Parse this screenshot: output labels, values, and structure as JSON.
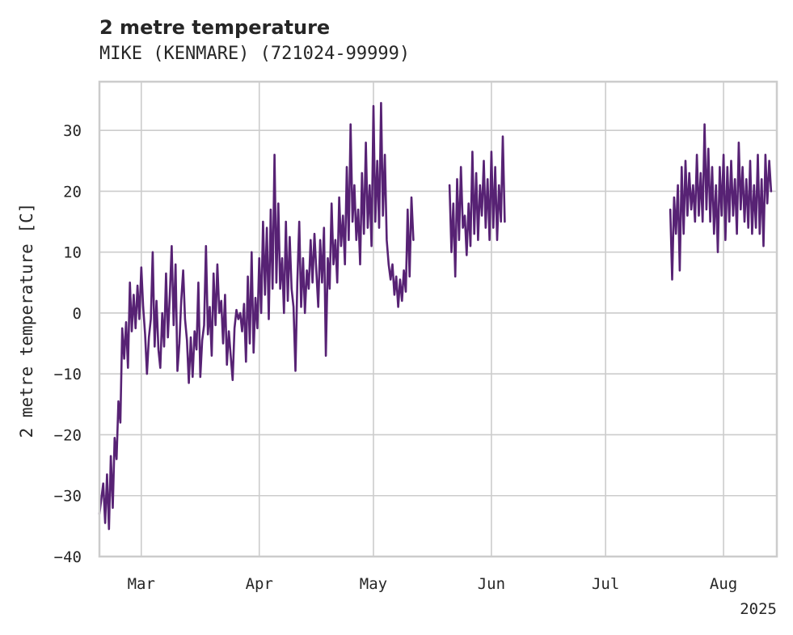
{
  "chart_data": {
    "type": "line",
    "title": "2 metre temperature",
    "subtitle": "MIKE (KENMARE) (721024-99999)",
    "xlabel": "",
    "ylabel": "2 metre temperature [C]",
    "xlim": [
      "2025-02-18",
      "2025-08-15"
    ],
    "ylim": [
      -40,
      38
    ],
    "y_ticks": [
      -40,
      -30,
      -20,
      -10,
      0,
      10,
      20,
      30
    ],
    "x_ticks": [
      {
        "date": "2025-03-01",
        "label": "Mar"
      },
      {
        "date": "2025-04-01",
        "label": "Apr"
      },
      {
        "date": "2025-05-01",
        "label": "May"
      },
      {
        "date": "2025-06-01",
        "label": "Jun"
      },
      {
        "date": "2025-07-01",
        "label": "Jul"
      },
      {
        "date": "2025-08-01",
        "label": "Aug"
      }
    ],
    "x_offset_label": "2025",
    "grid": true,
    "colors": {
      "line": "#572274",
      "grid": "#cccccc",
      "text": "#262626"
    },
    "series": [
      {
        "points": [
          [
            "2025-02-18T00:00",
            -33.0
          ],
          [
            "2025-02-18T12:00",
            -30.5
          ],
          [
            "2025-02-19T00:00",
            -28.0
          ],
          [
            "2025-02-19T12:00",
            -34.5
          ],
          [
            "2025-02-20T00:00",
            -26.5
          ],
          [
            "2025-02-20T12:00",
            -35.5
          ],
          [
            "2025-02-21T00:00",
            -23.5
          ],
          [
            "2025-02-21T12:00",
            -32.0
          ],
          [
            "2025-02-22T00:00",
            -20.5
          ],
          [
            "2025-02-22T12:00",
            -24.0
          ],
          [
            "2025-02-23T00:00",
            -14.5
          ],
          [
            "2025-02-23T12:00",
            -18.0
          ],
          [
            "2025-02-24T00:00",
            -2.5
          ],
          [
            "2025-02-24T12:00",
            -7.5
          ],
          [
            "2025-02-25T00:00",
            -1.5
          ],
          [
            "2025-02-25T12:00",
            -9.0
          ],
          [
            "2025-02-26T00:00",
            5.0
          ],
          [
            "2025-02-26T12:00",
            -3.0
          ],
          [
            "2025-02-27T00:00",
            3.0
          ],
          [
            "2025-02-27T12:00",
            -2.5
          ],
          [
            "2025-02-28T00:00",
            4.5
          ],
          [
            "2025-02-28T12:00",
            -1.0
          ],
          [
            "2025-03-01T00:00",
            7.5
          ],
          [
            "2025-03-01T12:00",
            1.0
          ],
          [
            "2025-03-02T00:00",
            -3.5
          ],
          [
            "2025-03-02T12:00",
            -10.0
          ],
          [
            "2025-03-03T00:00",
            -4.0
          ],
          [
            "2025-03-03T12:00",
            -1.0
          ],
          [
            "2025-03-04T00:00",
            10.0
          ],
          [
            "2025-03-04T12:00",
            -5.5
          ],
          [
            "2025-03-05T00:00",
            2.0
          ],
          [
            "2025-03-05T12:00",
            -6.0
          ],
          [
            "2025-03-06T00:00",
            -9.0
          ],
          [
            "2025-03-06T12:00",
            0.0
          ],
          [
            "2025-03-07T00:00",
            -5.5
          ],
          [
            "2025-03-07T12:00",
            6.5
          ],
          [
            "2025-03-08T00:00",
            -4.0
          ],
          [
            "2025-03-08T12:00",
            3.0
          ],
          [
            "2025-03-09T00:00",
            11.0
          ],
          [
            "2025-03-09T12:00",
            -2.0
          ],
          [
            "2025-03-10T00:00",
            8.0
          ],
          [
            "2025-03-10T12:00",
            -9.5
          ],
          [
            "2025-03-11T00:00",
            -5.0
          ],
          [
            "2025-03-11T12:00",
            2.0
          ],
          [
            "2025-03-12T00:00",
            7.0
          ],
          [
            "2025-03-12T12:00",
            -1.0
          ],
          [
            "2025-03-13T00:00",
            -4.5
          ],
          [
            "2025-03-13T12:00",
            -11.5
          ],
          [
            "2025-03-14T00:00",
            -4.0
          ],
          [
            "2025-03-14T12:00",
            -10.5
          ],
          [
            "2025-03-15T00:00",
            -3.0
          ],
          [
            "2025-03-15T12:00",
            -6.0
          ],
          [
            "2025-03-16T00:00",
            5.0
          ],
          [
            "2025-03-16T12:00",
            -10.5
          ],
          [
            "2025-03-17T00:00",
            -4.5
          ],
          [
            "2025-03-17T12:00",
            -2.0
          ],
          [
            "2025-03-18T00:00",
            11.0
          ],
          [
            "2025-03-18T12:00",
            -3.5
          ],
          [
            "2025-03-19T00:00",
            1.0
          ],
          [
            "2025-03-19T12:00",
            -7.0
          ],
          [
            "2025-03-20T00:00",
            6.5
          ],
          [
            "2025-03-20T12:00",
            -2.0
          ],
          [
            "2025-03-21T00:00",
            8.0
          ],
          [
            "2025-03-21T12:00",
            0.0
          ],
          [
            "2025-03-22T00:00",
            2.0
          ],
          [
            "2025-03-22T12:00",
            -5.0
          ],
          [
            "2025-03-23T00:00",
            3.0
          ],
          [
            "2025-03-23T12:00",
            -8.5
          ],
          [
            "2025-03-24T00:00",
            -3.0
          ],
          [
            "2025-03-24T12:00",
            -7.0
          ],
          [
            "2025-03-25T00:00",
            -11.0
          ],
          [
            "2025-03-25T12:00",
            -2.5
          ],
          [
            "2025-03-26T00:00",
            0.5
          ],
          [
            "2025-03-26T12:00",
            -1.0
          ],
          [
            "2025-03-27T00:00",
            0.0
          ],
          [
            "2025-03-27T12:00",
            -3.0
          ],
          [
            "2025-03-28T00:00",
            1.5
          ],
          [
            "2025-03-28T12:00",
            -8.0
          ],
          [
            "2025-03-29T00:00",
            6.0
          ],
          [
            "2025-03-29T12:00",
            -5.0
          ],
          [
            "2025-03-30T00:00",
            10.0
          ],
          [
            "2025-03-30T12:00",
            -6.5
          ],
          [
            "2025-03-31T00:00",
            2.5
          ],
          [
            "2025-03-31T12:00",
            -2.5
          ],
          [
            "2025-04-01T00:00",
            9.0
          ],
          [
            "2025-04-01T12:00",
            0.0
          ],
          [
            "2025-04-02T00:00",
            15.0
          ],
          [
            "2025-04-02T12:00",
            3.0
          ],
          [
            "2025-04-03T00:00",
            14.0
          ],
          [
            "2025-04-03T12:00",
            -1.0
          ],
          [
            "2025-04-04T00:00",
            17.0
          ],
          [
            "2025-04-04T12:00",
            4.0
          ],
          [
            "2025-04-05T00:00",
            26.0
          ],
          [
            "2025-04-05T12:00",
            5.0
          ],
          [
            "2025-04-06T00:00",
            18.0
          ],
          [
            "2025-04-06T12:00",
            4.0
          ],
          [
            "2025-04-07T00:00",
            9.0
          ],
          [
            "2025-04-07T12:00",
            0.0
          ],
          [
            "2025-04-08T00:00",
            15.0
          ],
          [
            "2025-04-08T12:00",
            2.0
          ],
          [
            "2025-04-09T00:00",
            12.5
          ],
          [
            "2025-04-09T12:00",
            4.0
          ],
          [
            "2025-04-10T00:00",
            1.0
          ],
          [
            "2025-04-10T12:00",
            -9.5
          ],
          [
            "2025-04-11T00:00",
            5.0
          ],
          [
            "2025-04-11T12:00",
            15.0
          ],
          [
            "2025-04-12T00:00",
            1.0
          ],
          [
            "2025-04-12T12:00",
            9.0
          ],
          [
            "2025-04-13T00:00",
            0.0
          ],
          [
            "2025-04-13T12:00",
            7.0
          ],
          [
            "2025-04-14T00:00",
            4.0
          ],
          [
            "2025-04-14T12:00",
            12.0
          ],
          [
            "2025-04-15T00:00",
            5.0
          ],
          [
            "2025-04-15T12:00",
            13.0
          ],
          [
            "2025-04-16T00:00",
            7.0
          ],
          [
            "2025-04-16T12:00",
            1.0
          ],
          [
            "2025-04-17T00:00",
            12.0
          ],
          [
            "2025-04-17T12:00",
            5.0
          ],
          [
            "2025-04-18T00:00",
            14.0
          ],
          [
            "2025-04-18T12:00",
            -7.0
          ],
          [
            "2025-04-19T00:00",
            9.0
          ],
          [
            "2025-04-19T12:00",
            4.0
          ],
          [
            "2025-04-20T00:00",
            18.0
          ],
          [
            "2025-04-20T12:00",
            8.0
          ],
          [
            "2025-04-21T00:00",
            12.0
          ],
          [
            "2025-04-21T12:00",
            5.0
          ],
          [
            "2025-04-22T00:00",
            19.0
          ],
          [
            "2025-04-22T12:00",
            11.0
          ],
          [
            "2025-04-23T00:00",
            16.0
          ],
          [
            "2025-04-23T12:00",
            8.0
          ],
          [
            "2025-04-24T00:00",
            24.0
          ],
          [
            "2025-04-24T12:00",
            12.0
          ],
          [
            "2025-04-25T00:00",
            31.0
          ],
          [
            "2025-04-25T12:00",
            15.0
          ],
          [
            "2025-04-26T00:00",
            21.0
          ],
          [
            "2025-04-26T12:00",
            12.0
          ],
          [
            "2025-04-27T00:00",
            17.0
          ],
          [
            "2025-04-27T12:00",
            8.0
          ],
          [
            "2025-04-28T00:00",
            23.0
          ],
          [
            "2025-04-28T12:00",
            13.0
          ],
          [
            "2025-04-29T00:00",
            28.0
          ],
          [
            "2025-04-29T12:00",
            14.0
          ],
          [
            "2025-04-30T00:00",
            21.0
          ],
          [
            "2025-04-30T12:00",
            11.0
          ],
          [
            "2025-05-01T00:00",
            34.0
          ],
          [
            "2025-05-01T12:00",
            15.0
          ],
          [
            "2025-05-02T00:00",
            25.0
          ],
          [
            "2025-05-02T12:00",
            14.0
          ],
          [
            "2025-05-03T00:00",
            34.5
          ],
          [
            "2025-05-03T12:00",
            16.0
          ],
          [
            "2025-05-04T00:00",
            26.0
          ],
          [
            "2025-05-04T12:00",
            12.0
          ],
          [
            "2025-05-05T00:00",
            8.0
          ],
          [
            "2025-05-05T12:00",
            5.5
          ],
          [
            "2025-05-06T00:00",
            8.0
          ],
          [
            "2025-05-06T12:00",
            3.0
          ],
          [
            "2025-05-07T00:00",
            6.0
          ],
          [
            "2025-05-07T12:00",
            1.0
          ],
          [
            "2025-05-08T00:00",
            5.5
          ],
          [
            "2025-05-08T12:00",
            2.0
          ],
          [
            "2025-05-09T00:00",
            7.0
          ],
          [
            "2025-05-09T12:00",
            3.5
          ],
          [
            "2025-05-10T00:00",
            17.0
          ],
          [
            "2025-05-10T12:00",
            6.0
          ],
          [
            "2025-05-11T00:00",
            19.0
          ],
          [
            "2025-05-11T12:00",
            12.0
          ],
          null,
          [
            "2025-05-21T00:00",
            21.0
          ],
          [
            "2025-05-21T12:00",
            10.0
          ],
          [
            "2025-05-22T00:00",
            18.0
          ],
          [
            "2025-05-22T12:00",
            6.0
          ],
          [
            "2025-05-23T00:00",
            22.0
          ],
          [
            "2025-05-23T12:00",
            12.0
          ],
          [
            "2025-05-24T00:00",
            24.0
          ],
          [
            "2025-05-24T12:00",
            14.0
          ],
          [
            "2025-05-25T00:00",
            16.0
          ],
          [
            "2025-05-25T12:00",
            9.5
          ],
          [
            "2025-05-26T00:00",
            18.0
          ],
          [
            "2025-05-26T12:00",
            11.0
          ],
          [
            "2025-05-27T00:00",
            26.5
          ],
          [
            "2025-05-27T12:00",
            13.0
          ],
          [
            "2025-05-28T00:00",
            23.0
          ],
          [
            "2025-05-28T12:00",
            12.0
          ],
          [
            "2025-05-29T00:00",
            21.0
          ],
          [
            "2025-05-29T12:00",
            16.0
          ],
          [
            "2025-05-30T00:00",
            25.0
          ],
          [
            "2025-05-30T12:00",
            14.0
          ],
          [
            "2025-05-31T00:00",
            22.0
          ],
          [
            "2025-05-31T12:00",
            12.0
          ],
          [
            "2025-06-01T00:00",
            26.5
          ],
          [
            "2025-06-01T12:00",
            14.0
          ],
          [
            "2025-06-02T00:00",
            24.0
          ],
          [
            "2025-06-02T12:00",
            12.0
          ],
          [
            "2025-06-03T00:00",
            21.0
          ],
          [
            "2025-06-03T12:00",
            15.0
          ],
          [
            "2025-06-04T00:00",
            29.0
          ],
          [
            "2025-06-04T12:00",
            15.0
          ],
          null,
          [
            "2025-07-18T00:00",
            17.0
          ],
          [
            "2025-07-18T12:00",
            5.5
          ],
          [
            "2025-07-19T00:00",
            19.0
          ],
          [
            "2025-07-19T12:00",
            13.0
          ],
          [
            "2025-07-20T00:00",
            21.0
          ],
          [
            "2025-07-20T12:00",
            7.0
          ],
          [
            "2025-07-21T00:00",
            24.0
          ],
          [
            "2025-07-21T12:00",
            13.0
          ],
          [
            "2025-07-22T00:00",
            25.0
          ],
          [
            "2025-07-22T12:00",
            16.0
          ],
          [
            "2025-07-23T00:00",
            23.0
          ],
          [
            "2025-07-23T12:00",
            17.0
          ],
          [
            "2025-07-24T00:00",
            21.0
          ],
          [
            "2025-07-24T12:00",
            15.0
          ],
          [
            "2025-07-25T00:00",
            26.0
          ],
          [
            "2025-07-25T12:00",
            16.0
          ],
          [
            "2025-07-26T00:00",
            23.0
          ],
          [
            "2025-07-26T12:00",
            15.0
          ],
          [
            "2025-07-27T00:00",
            31.0
          ],
          [
            "2025-07-27T12:00",
            17.0
          ],
          [
            "2025-07-28T00:00",
            27.0
          ],
          [
            "2025-07-28T12:00",
            15.0
          ],
          [
            "2025-07-29T00:00",
            24.0
          ],
          [
            "2025-07-29T12:00",
            13.0
          ],
          [
            "2025-07-30T00:00",
            21.0
          ],
          [
            "2025-07-30T12:00",
            10.0
          ],
          [
            "2025-07-31T00:00",
            24.0
          ],
          [
            "2025-07-31T12:00",
            16.0
          ],
          [
            "2025-08-01T00:00",
            26.0
          ],
          [
            "2025-08-01T12:00",
            12.0
          ],
          [
            "2025-08-02T00:00",
            24.0
          ],
          [
            "2025-08-02T12:00",
            15.0
          ],
          [
            "2025-08-03T00:00",
            25.0
          ],
          [
            "2025-08-03T12:00",
            16.0
          ],
          [
            "2025-08-04T00:00",
            22.0
          ],
          [
            "2025-08-04T12:00",
            13.0
          ],
          [
            "2025-08-05T00:00",
            28.0
          ],
          [
            "2025-08-05T12:00",
            17.0
          ],
          [
            "2025-08-06T00:00",
            24.0
          ],
          [
            "2025-08-06T12:00",
            15.0
          ],
          [
            "2025-08-07T00:00",
            22.0
          ],
          [
            "2025-08-07T12:00",
            14.0
          ],
          [
            "2025-08-08T00:00",
            25.0
          ],
          [
            "2025-08-08T12:00",
            13.0
          ],
          [
            "2025-08-09T00:00",
            21.0
          ],
          [
            "2025-08-09T12:00",
            14.0
          ],
          [
            "2025-08-10T00:00",
            26.0
          ],
          [
            "2025-08-10T12:00",
            13.0
          ],
          [
            "2025-08-11T00:00",
            22.0
          ],
          [
            "2025-08-11T12:00",
            11.0
          ],
          [
            "2025-08-12T00:00",
            26.0
          ],
          [
            "2025-08-12T12:00",
            18.0
          ],
          [
            "2025-08-13T00:00",
            25.0
          ],
          [
            "2025-08-13T12:00",
            20.0
          ]
        ]
      }
    ]
  }
}
